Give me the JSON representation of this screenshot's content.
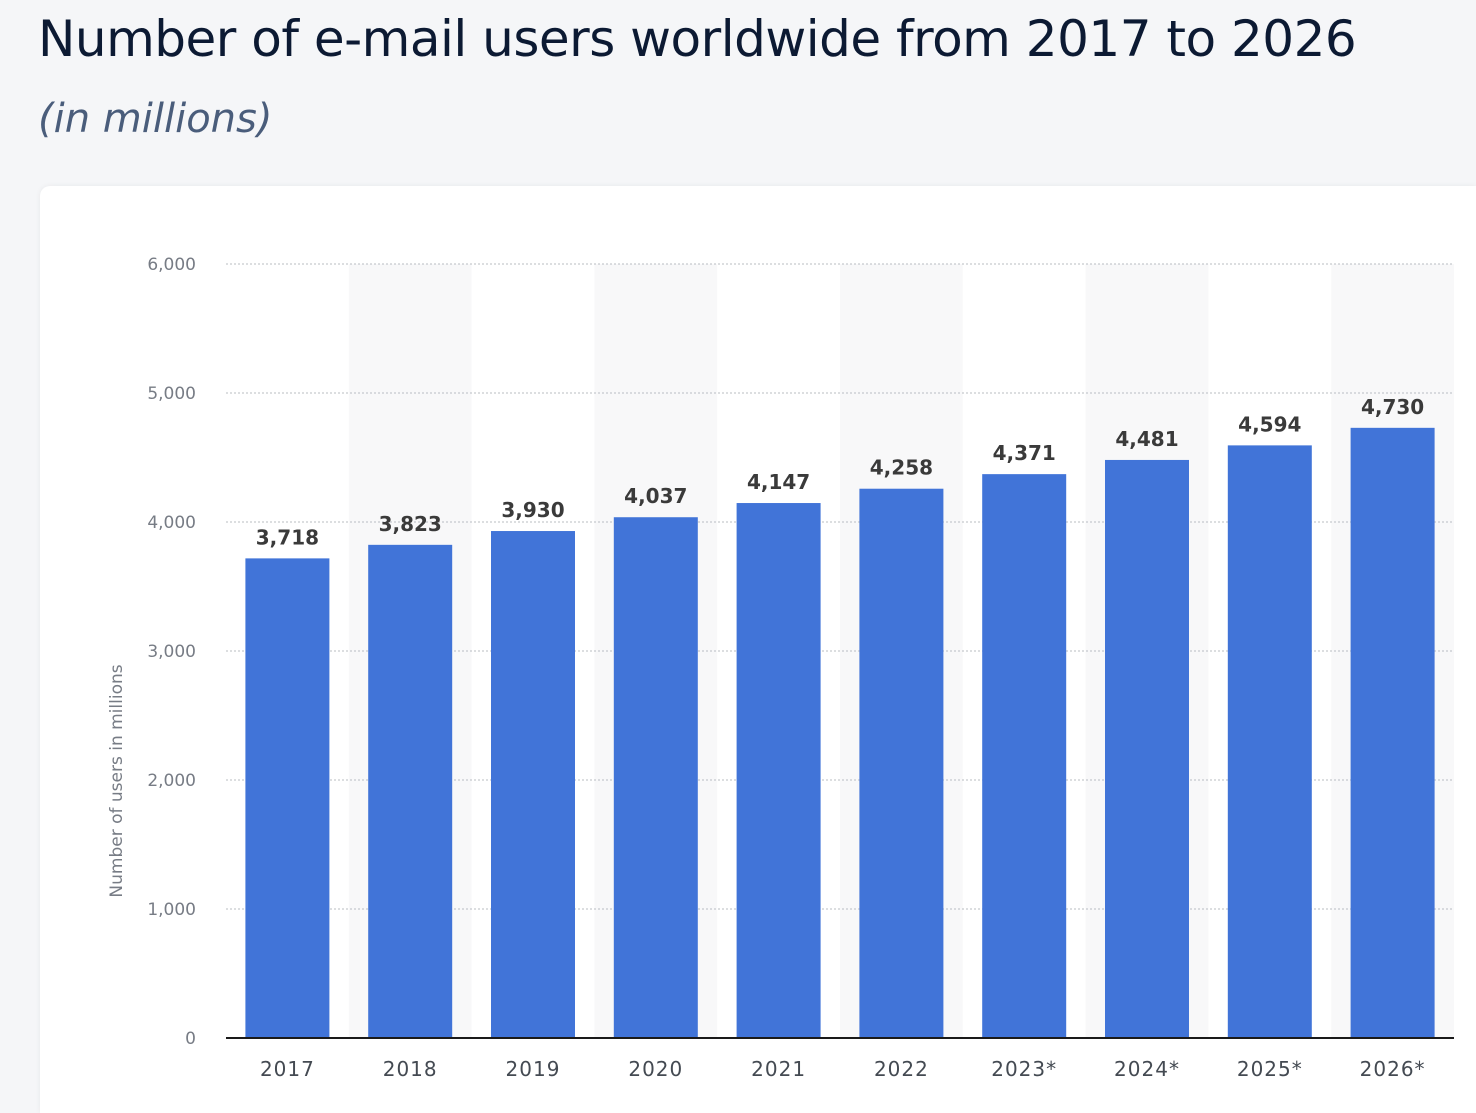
{
  "header": {
    "title": "Number of e-mail users worldwide from 2017 to 2026",
    "subtitle": "(in millions)"
  },
  "chart_data": {
    "type": "bar",
    "title": "Number of e-mail users worldwide from 2017 to 2026",
    "subtitle": "(in millions)",
    "xlabel": "",
    "ylabel": "Number of users in millions",
    "ylim": [
      0,
      6000
    ],
    "yticks": [
      0,
      1000,
      2000,
      3000,
      4000,
      5000,
      6000
    ],
    "ytick_labels": [
      "0",
      "1,000",
      "2,000",
      "3,000",
      "4,000",
      "5,000",
      "6,000"
    ],
    "categories": [
      "2017",
      "2018",
      "2019",
      "2020",
      "2021",
      "2022",
      "2023*",
      "2024*",
      "2025*",
      "2026*"
    ],
    "values": [
      3718,
      3823,
      3930,
      4037,
      4147,
      4258,
      4371,
      4481,
      4594,
      4730
    ],
    "value_labels": [
      "3,718",
      "3,823",
      "3,930",
      "4,037",
      "4,147",
      "4,258",
      "4,371",
      "4,481",
      "4,594",
      "4,730"
    ],
    "grid": true,
    "bar_color": "#4174d8",
    "band_color": "#f8f8f9"
  }
}
